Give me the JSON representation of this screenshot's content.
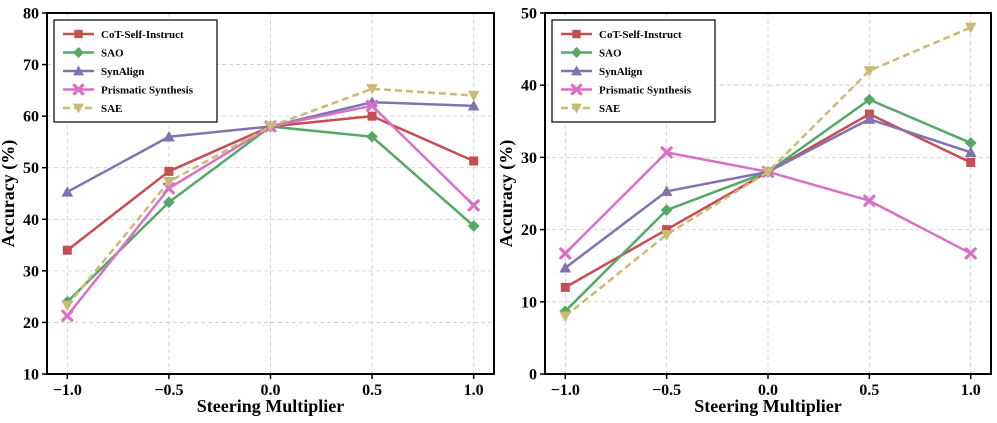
{
  "chart_data": [
    {
      "type": "line",
      "xlabel": "Steering Multiplier",
      "ylabel": "Accuracy (%)",
      "x": [
        -1.0,
        -0.5,
        0.0,
        0.5,
        1.0
      ],
      "x_tick_labels": [
        "−1.0",
        "−0.5",
        "0.0",
        "0.5",
        "1.0"
      ],
      "xlim": [
        -1.1,
        1.1
      ],
      "ylim": [
        10,
        80
      ],
      "y_ticks": [
        10,
        20,
        30,
        40,
        50,
        60,
        70,
        80
      ],
      "grid": true,
      "legend_position": "top-left",
      "series": [
        {
          "name": "CoT-Self-Instruct",
          "color": "#c44e52",
          "marker": "square",
          "dashed": false,
          "values": [
            34.0,
            49.3,
            58.0,
            60.0,
            51.3
          ]
        },
        {
          "name": "SAO",
          "color": "#55a868",
          "marker": "diamond",
          "dashed": false,
          "values": [
            24.0,
            43.3,
            58.0,
            56.0,
            38.7
          ]
        },
        {
          "name": "SynAlign",
          "color": "#8172b2",
          "marker": "triangle",
          "dashed": false,
          "values": [
            45.3,
            56.0,
            58.0,
            62.7,
            62.0
          ]
        },
        {
          "name": "Prismatic Synthesis",
          "color": "#da70c4",
          "marker": "x",
          "dashed": false,
          "values": [
            21.3,
            46.0,
            58.0,
            62.0,
            42.7
          ]
        },
        {
          "name": "SAE",
          "color": "#ccb974",
          "marker": "triangle-down",
          "dashed": true,
          "values": [
            23.3,
            47.3,
            58.0,
            65.3,
            64.0
          ]
        }
      ]
    },
    {
      "type": "line",
      "xlabel": "Steering Multiplier",
      "ylabel": "Accuracy (%)",
      "x": [
        -1.0,
        -0.5,
        0.0,
        0.5,
        1.0
      ],
      "x_tick_labels": [
        "−1.0",
        "−0.5",
        "0.0",
        "0.5",
        "1.0"
      ],
      "xlim": [
        -1.1,
        1.1
      ],
      "ylim": [
        0,
        50
      ],
      "y_ticks": [
        0,
        10,
        20,
        30,
        40,
        50
      ],
      "grid": true,
      "legend_position": "top-left",
      "series": [
        {
          "name": "CoT-Self-Instruct",
          "color": "#c44e52",
          "marker": "square",
          "dashed": false,
          "values": [
            12.0,
            20.0,
            28.0,
            36.0,
            29.3
          ]
        },
        {
          "name": "SAO",
          "color": "#55a868",
          "marker": "diamond",
          "dashed": false,
          "values": [
            8.7,
            22.7,
            28.0,
            38.0,
            32.0
          ]
        },
        {
          "name": "SynAlign",
          "color": "#8172b2",
          "marker": "triangle",
          "dashed": false,
          "values": [
            14.7,
            25.3,
            28.0,
            35.3,
            30.7
          ]
        },
        {
          "name": "Prismatic Synthesis",
          "color": "#da70c4",
          "marker": "x",
          "dashed": false,
          "values": [
            16.7,
            30.7,
            28.0,
            24.0,
            16.7
          ]
        },
        {
          "name": "SAE",
          "color": "#ccb974",
          "marker": "triangle-down",
          "dashed": true,
          "values": [
            8.0,
            19.3,
            28.0,
            42.0,
            48.0
          ]
        }
      ]
    }
  ]
}
